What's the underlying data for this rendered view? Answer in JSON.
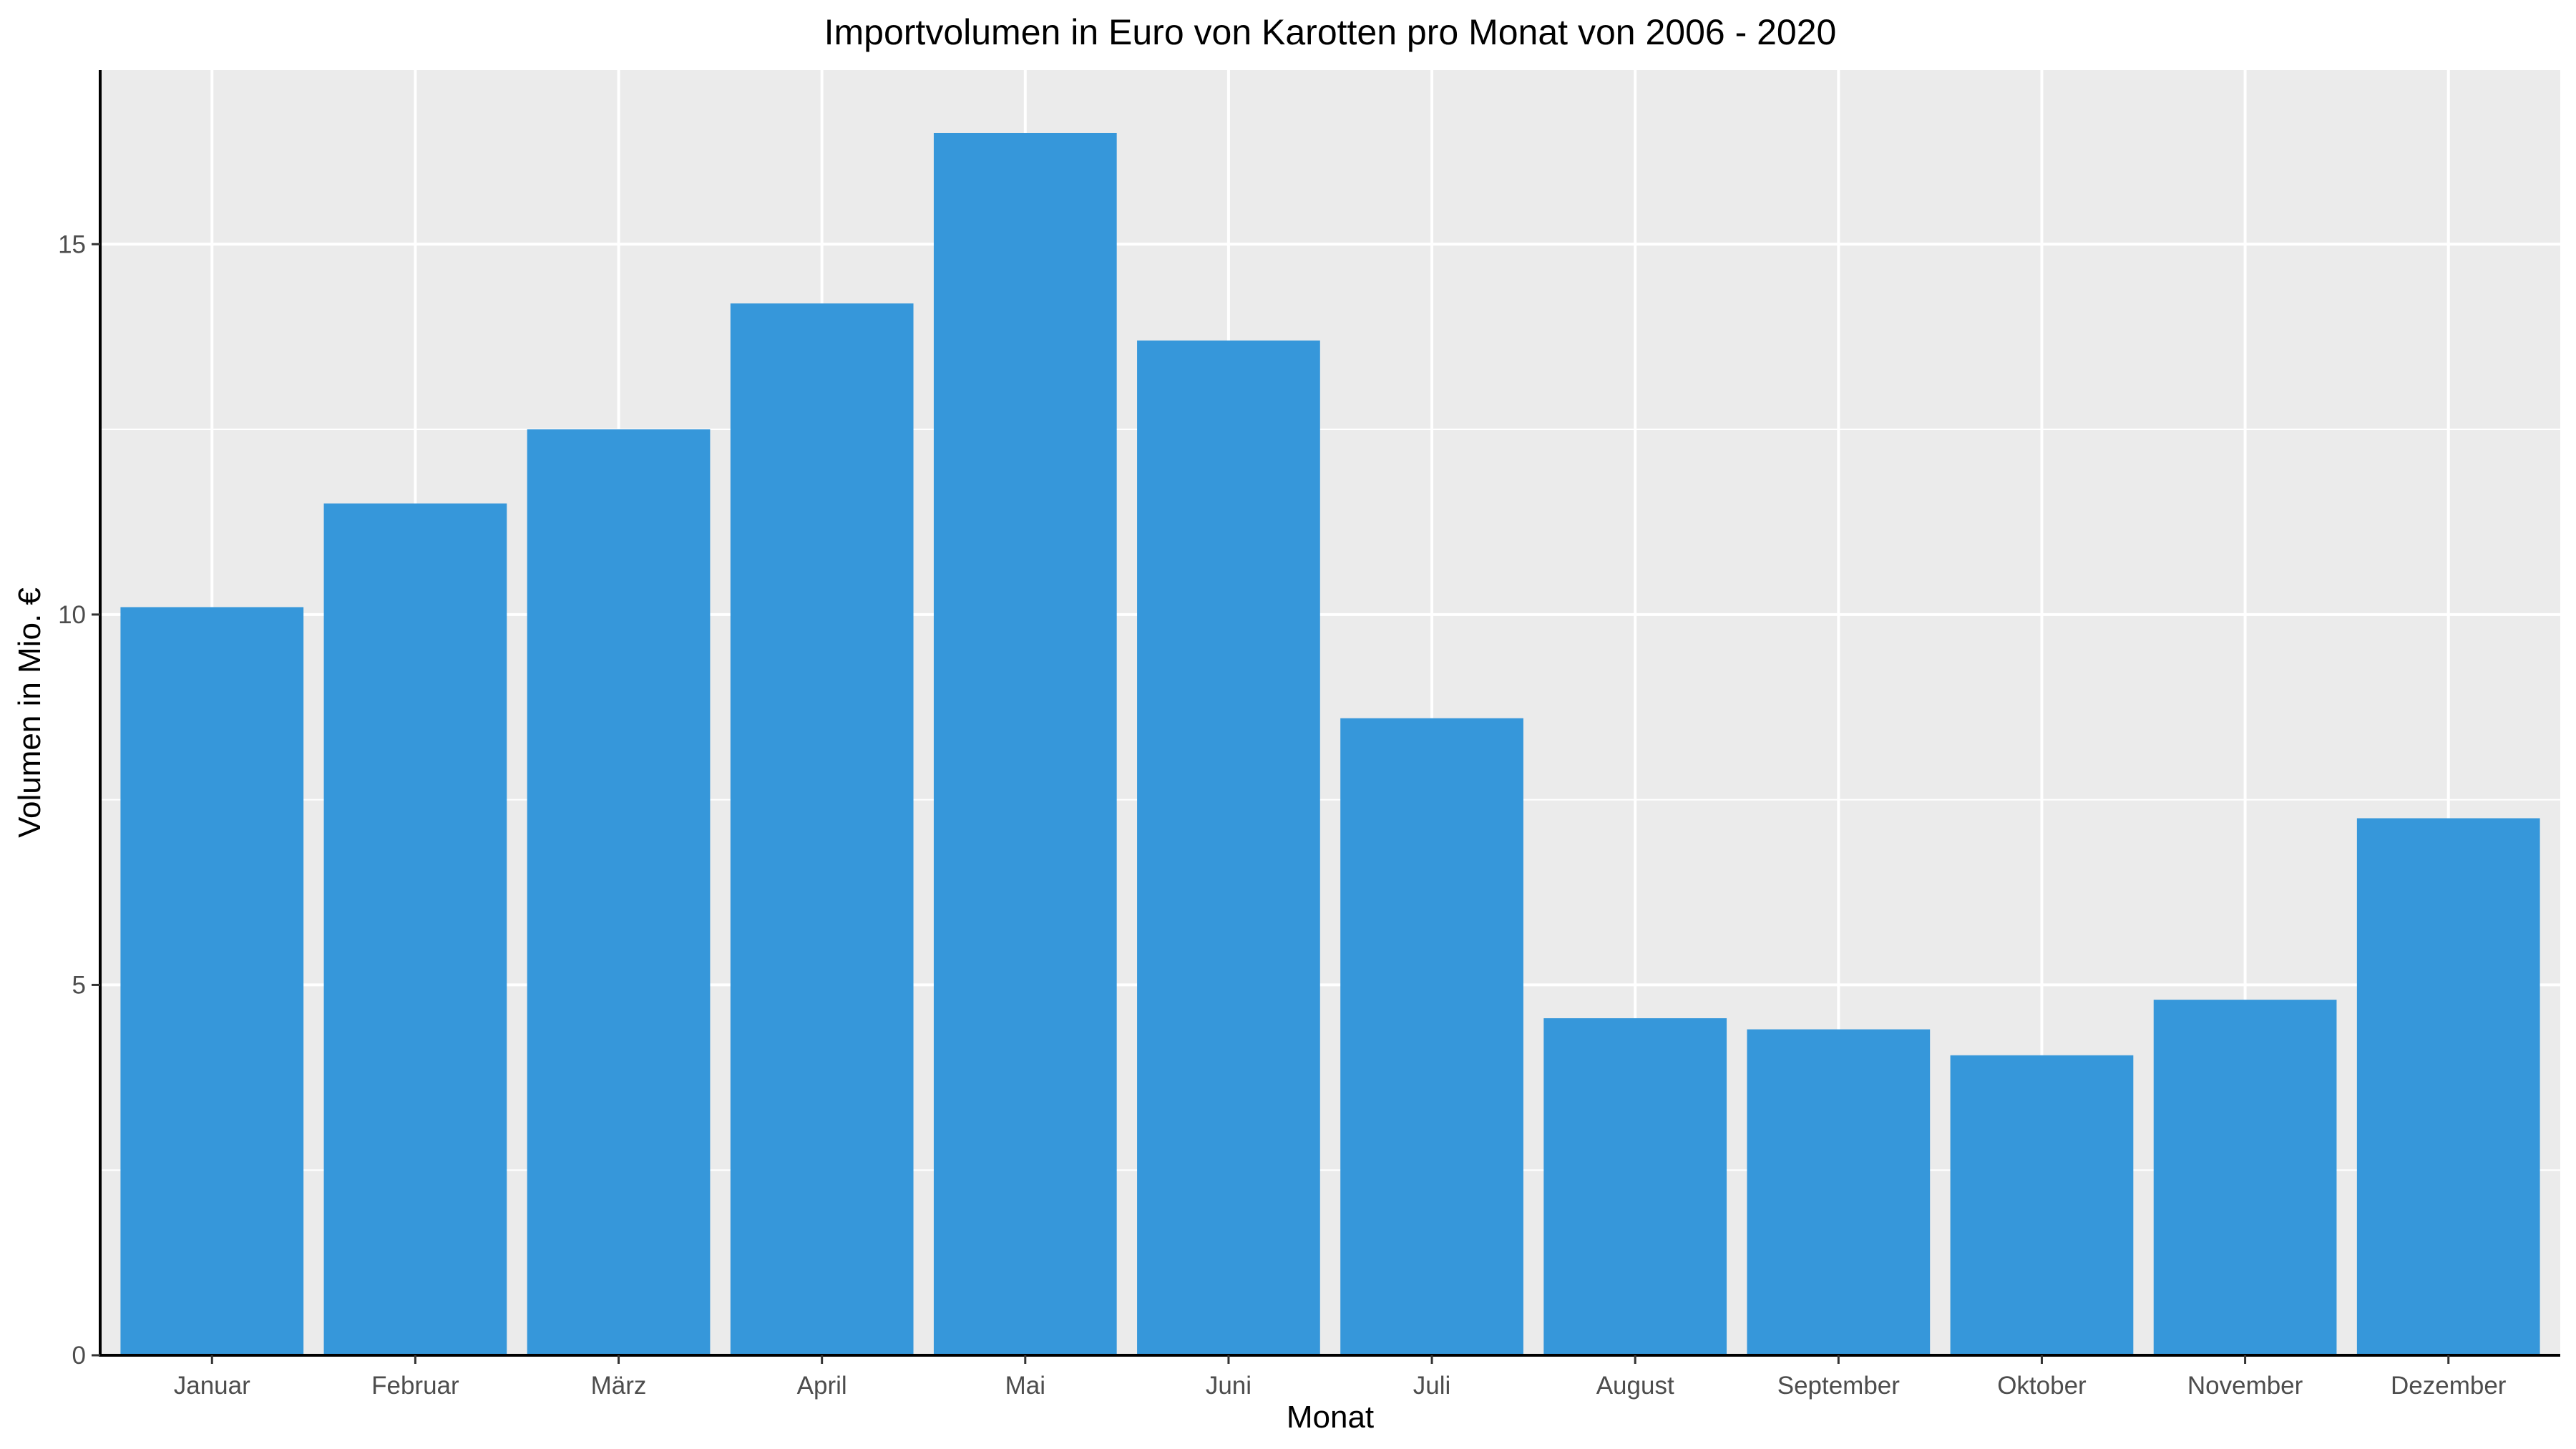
{
  "chart_data": {
    "type": "bar",
    "title": "Importvolumen in Euro von Karotten pro Monat von 2006 - 2020",
    "xlabel": "Monat",
    "ylabel": "Volumen in Mio. €",
    "categories": [
      "Januar",
      "Februar",
      "März",
      "April",
      "Mai",
      "Juni",
      "Juli",
      "August",
      "September",
      "Oktober",
      "November",
      "Dezember"
    ],
    "values": [
      10.1,
      11.5,
      12.5,
      14.2,
      16.5,
      13.7,
      8.6,
      4.55,
      4.4,
      4.05,
      4.8,
      7.25
    ],
    "ylim": [
      0,
      17.35
    ],
    "yticks": [
      0,
      5,
      10,
      15
    ],
    "ytick_labels": [
      "0",
      "5",
      "10",
      "15"
    ],
    "grid": true,
    "bar_color": "#3697DA",
    "panel_color": "#EBEBEB",
    "grid_color": "#FFFFFF"
  }
}
